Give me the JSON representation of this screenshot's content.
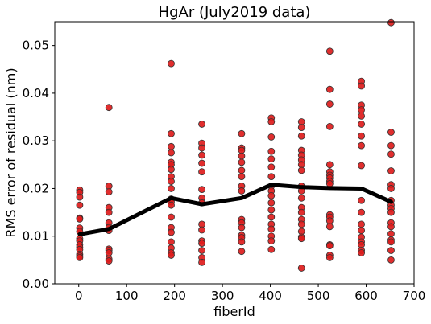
{
  "chart_data": {
    "type": "scatter",
    "title": "HgAr (July2019 data)",
    "xlabel": "fiberId",
    "ylabel": "RMS error of residual (nm)",
    "xlim": [
      -50,
      700
    ],
    "ylim": [
      0.0,
      0.055
    ],
    "xticks": [
      0,
      100,
      200,
      300,
      400,
      500,
      600,
      700
    ],
    "yticks": [
      0.0,
      0.01,
      0.02,
      0.03,
      0.04,
      0.05
    ],
    "xtick_labels": [
      "0",
      "100",
      "200",
      "300",
      "400",
      "500",
      "600",
      "700"
    ],
    "ytick_labels": [
      "0.00",
      "0.01",
      "0.02",
      "0.03",
      "0.04",
      "0.05"
    ],
    "grid": false,
    "legend": "none",
    "scatter_color": "#dd1c1c",
    "scatter_edge": "#333333",
    "line_color": "#000000",
    "columns": [
      {
        "x": 2,
        "y": [
          0.0197,
          0.0192,
          0.0182,
          0.0165,
          0.0138,
          0.0136,
          0.0117,
          0.011,
          0.0095,
          0.009,
          0.0082,
          0.0077,
          0.0072,
          0.0062,
          0.0058,
          0.0055
        ]
      },
      {
        "x": 63,
        "y": [
          0.037,
          0.0205,
          0.0193,
          0.016,
          0.015,
          0.0128,
          0.0118,
          0.0112,
          0.0073,
          0.007,
          0.0065,
          0.0052,
          0.0048
        ]
      },
      {
        "x": 193,
        "y": [
          0.0462,
          0.0315,
          0.0288,
          0.0275,
          0.0255,
          0.025,
          0.024,
          0.0225,
          0.0215,
          0.02,
          0.0178,
          0.0172,
          0.0165,
          0.014,
          0.0118,
          0.0108,
          0.0088,
          0.0075,
          0.0065,
          0.006
        ]
      },
      {
        "x": 257,
        "y": [
          0.0335,
          0.0295,
          0.0285,
          0.027,
          0.0253,
          0.0235,
          0.0198,
          0.018,
          0.017,
          0.0125,
          0.0113,
          0.009,
          0.0085,
          0.007,
          0.0055,
          0.0045
        ]
      },
      {
        "x": 340,
        "y": [
          0.0315,
          0.0285,
          0.028,
          0.0268,
          0.0255,
          0.0238,
          0.0225,
          0.0205,
          0.0195,
          0.0135,
          0.0128,
          0.0118,
          0.0102,
          0.0097,
          0.0088,
          0.0068
        ]
      },
      {
        "x": 402,
        "y": [
          0.0348,
          0.034,
          0.0308,
          0.0278,
          0.0262,
          0.0245,
          0.0225,
          0.0205,
          0.0195,
          0.0185,
          0.017,
          0.0155,
          0.014,
          0.0125,
          0.0115,
          0.01,
          0.009,
          0.0072
        ]
      },
      {
        "x": 465,
        "y": [
          0.034,
          0.0328,
          0.031,
          0.028,
          0.027,
          0.026,
          0.025,
          0.0238,
          0.0205,
          0.0195,
          0.018,
          0.016,
          0.015,
          0.0135,
          0.0125,
          0.011,
          0.0098,
          0.0095,
          0.0033
        ]
      },
      {
        "x": 524,
        "y": [
          0.0488,
          0.0408,
          0.0377,
          0.033,
          0.025,
          0.0235,
          0.0228,
          0.0222,
          0.0215,
          0.021,
          0.0145,
          0.014,
          0.0132,
          0.012,
          0.0082,
          0.008,
          0.006,
          0.0055
        ]
      },
      {
        "x": 590,
        "y": [
          0.0425,
          0.0415,
          0.0375,
          0.0365,
          0.0352,
          0.0335,
          0.031,
          0.029,
          0.0248,
          0.0175,
          0.015,
          0.0125,
          0.0112,
          0.0098,
          0.0088,
          0.0082,
          0.007,
          0.0065
        ]
      },
      {
        "x": 652,
        "y": [
          0.0548,
          0.0318,
          0.029,
          0.0272,
          0.0237,
          0.0208,
          0.02,
          0.0175,
          0.0165,
          0.0158,
          0.015,
          0.0128,
          0.012,
          0.0105,
          0.0092,
          0.0088,
          0.007,
          0.005
        ]
      }
    ],
    "mean_line": {
      "x": [
        2,
        63,
        193,
        257,
        340,
        402,
        465,
        524,
        590,
        652
      ],
      "y": [
        0.0104,
        0.0115,
        0.018,
        0.0167,
        0.018,
        0.0208,
        0.0203,
        0.0201,
        0.02,
        0.0172
      ]
    }
  }
}
